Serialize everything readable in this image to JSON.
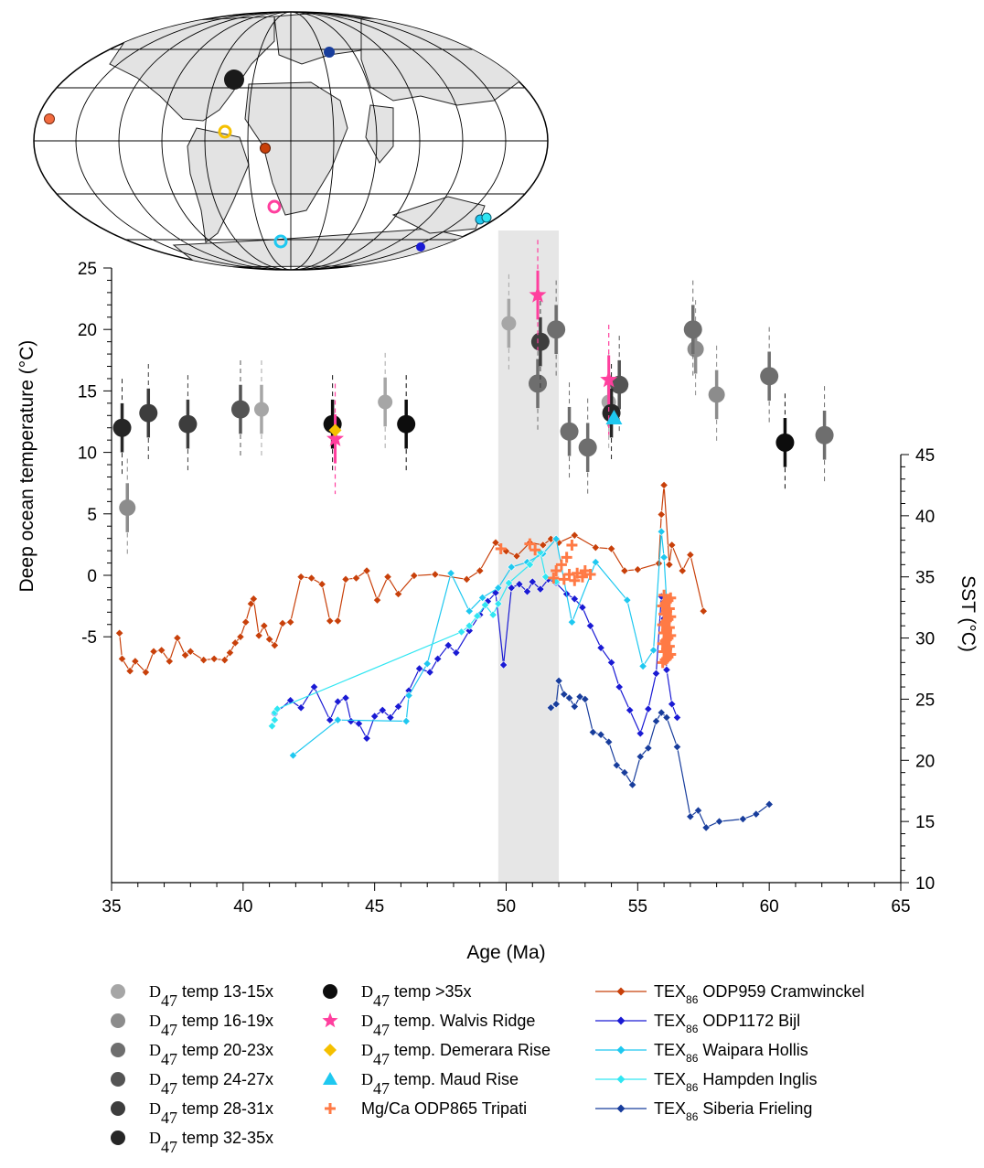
{
  "chart_data": {
    "type": "scatter",
    "xlabel": "Age (Ma)",
    "ylabel_left": "Deep ocean temperature (°C)",
    "ylabel_right": "SST (°C)",
    "xlim": [
      35,
      65
    ],
    "ylim_left": [
      -25,
      25
    ],
    "ylim_right": [
      10,
      45
    ],
    "x_ticks": [
      35,
      40,
      45,
      50,
      55,
      60,
      65
    ],
    "y_left_ticks": [
      -5,
      0,
      5,
      10,
      15,
      20,
      25
    ],
    "y_right_ticks": [
      10,
      15,
      20,
      25,
      30,
      35,
      40,
      45
    ],
    "shaded_interval": [
      49.7,
      52
    ],
    "clumped_series": [
      {
        "name": "D47 temp 13-15x",
        "color": "#a6a6a6",
        "size": 8,
        "points": [
          [
            40.7,
            13.5
          ],
          [
            45.4,
            14.1
          ],
          [
            50.1,
            20.5
          ],
          [
            53.9,
            14.1
          ]
        ]
      },
      {
        "name": "D47 temp 16-19x",
        "color": "#8c8c8c",
        "size": 9,
        "points": [
          [
            35.6,
            5.5
          ],
          [
            57.2,
            18.4
          ],
          [
            58.0,
            14.7
          ]
        ]
      },
      {
        "name": "D47 temp 20-23x",
        "color": "#6e6e6e",
        "size": 10,
        "points": [
          [
            51.2,
            15.6
          ],
          [
            51.9,
            20.0
          ],
          [
            52.4,
            11.7
          ],
          [
            53.1,
            10.4
          ],
          [
            57.1,
            20.0
          ],
          [
            60.0,
            16.2
          ],
          [
            62.1,
            11.4
          ]
        ]
      },
      {
        "name": "D47 temp 24-27x",
        "color": "#545454",
        "size": 10,
        "points": [
          [
            39.9,
            13.5
          ],
          [
            54.3,
            15.5
          ]
        ]
      },
      {
        "name": "D47 temp 28-31x",
        "color": "#3d3d3d",
        "size": 10,
        "points": [
          [
            36.4,
            13.2
          ],
          [
            37.9,
            12.3
          ],
          [
            51.3,
            19.0
          ]
        ]
      },
      {
        "name": "D47 temp 32-35x",
        "color": "#262626",
        "size": 10,
        "points": [
          [
            35.4,
            12.0
          ],
          [
            54.0,
            13.2
          ]
        ]
      },
      {
        "name": "D47 temp >35x",
        "color": "#0d0d0d",
        "size": 10,
        "points": [
          [
            43.4,
            12.3
          ],
          [
            46.2,
            12.3
          ],
          [
            60.6,
            10.8
          ]
        ]
      }
    ],
    "walvis_ridge": {
      "name": "D47 temp. Walvis Ridge",
      "color": "#ff3f9e",
      "points": [
        [
          43.5,
          11.1
        ],
        [
          51.2,
          22.8
        ],
        [
          53.9,
          15.9
        ]
      ]
    },
    "demerara_rise": {
      "name": "D47 temp. Demerara Rise",
      "color": "#f5c000",
      "points": [
        [
          43.5,
          11.8
        ]
      ]
    },
    "maud_rise": {
      "name": "D47 temp. Maud Rise",
      "color": "#1ec8f0",
      "points": [
        [
          54.1,
          12.8
        ]
      ]
    },
    "mgca_tripati": {
      "name": "Mg/Ca ODP865 Tripati",
      "color": "#ff7a45",
      "points": [
        [
          49.8,
          37.3
        ],
        [
          50.9,
          37.7
        ],
        [
          51.1,
          37.2
        ],
        [
          51.9,
          35.5
        ],
        [
          52.1,
          36.0
        ],
        [
          52.3,
          36.6
        ],
        [
          52.5,
          37.6
        ],
        [
          52.2,
          34.8
        ],
        [
          52.4,
          35.2
        ],
        [
          52.7,
          35.3
        ],
        [
          53.0,
          35.5
        ],
        [
          53.2,
          35.2
        ],
        [
          51.8,
          34.9
        ],
        [
          52.9,
          35.0
        ],
        [
          52.6,
          34.7
        ]
      ]
    },
    "mgca_cluster": {
      "color": "#ff7a45",
      "x_center": 56.1,
      "y_min": 28.0,
      "y_max": 33.5
    },
    "tex_series": [
      {
        "name": "TEX86 ODP959 Cramwinckel",
        "color": "#c8400a",
        "points": [
          [
            35.3,
            30.4
          ],
          [
            35.4,
            28.3
          ],
          [
            35.7,
            27.3
          ],
          [
            35.9,
            28.1
          ],
          [
            36.3,
            27.2
          ],
          [
            36.6,
            28.9
          ],
          [
            36.9,
            29.0
          ],
          [
            37.2,
            28.1
          ],
          [
            37.5,
            30.0
          ],
          [
            37.8,
            28.6
          ],
          [
            38.0,
            28.9
          ],
          [
            38.5,
            28.2
          ],
          [
            38.9,
            28.3
          ],
          [
            39.3,
            28.2
          ],
          [
            39.5,
            28.8
          ],
          [
            39.7,
            29.6
          ],
          [
            39.9,
            30.1
          ],
          [
            40.1,
            31.3
          ],
          [
            40.3,
            32.8
          ],
          [
            40.4,
            33.2
          ],
          [
            40.6,
            30.2
          ],
          [
            40.8,
            31.0
          ],
          [
            41.0,
            29.9
          ],
          [
            41.2,
            29.4
          ],
          [
            41.5,
            31.2
          ],
          [
            41.8,
            31.3
          ],
          [
            42.2,
            35.0
          ],
          [
            42.6,
            34.9
          ],
          [
            43.0,
            34.4
          ],
          [
            43.3,
            31.4
          ],
          [
            43.6,
            31.4
          ],
          [
            43.9,
            34.8
          ],
          [
            44.3,
            34.9
          ],
          [
            44.7,
            35.5
          ],
          [
            45.1,
            33.1
          ],
          [
            45.5,
            35.0
          ],
          [
            45.9,
            33.6
          ],
          [
            46.5,
            35.1
          ],
          [
            47.3,
            35.2
          ],
          [
            48.5,
            34.8
          ],
          [
            49.0,
            35.5
          ],
          [
            49.6,
            37.8
          ],
          [
            50.0,
            37.1
          ],
          [
            50.4,
            36.7
          ],
          [
            50.9,
            37.8
          ],
          [
            51.4,
            37.6
          ],
          [
            51.7,
            38.1
          ],
          [
            52.0,
            37.8
          ],
          [
            52.6,
            38.4
          ],
          [
            53.4,
            37.4
          ],
          [
            54.0,
            37.3
          ],
          [
            54.5,
            35.5
          ],
          [
            55.0,
            35.6
          ],
          [
            55.8,
            36.1
          ],
          [
            55.9,
            40.1
          ],
          [
            56.0,
            42.5
          ],
          [
            56.2,
            36.0
          ],
          [
            56.3,
            37.6
          ],
          [
            56.7,
            35.5
          ],
          [
            57.0,
            36.8
          ],
          [
            57.5,
            32.2
          ]
        ]
      },
      {
        "name": "TEX86 ODP1172 Bijl",
        "color": "#1a1ad4",
        "points": [
          [
            41.2,
            23.8
          ],
          [
            41.8,
            24.9
          ],
          [
            42.2,
            24.3
          ],
          [
            42.7,
            26.0
          ],
          [
            43.3,
            23.3
          ],
          [
            43.6,
            24.8
          ],
          [
            43.9,
            25.1
          ],
          [
            44.1,
            23.2
          ],
          [
            44.4,
            23.0
          ],
          [
            44.7,
            21.8
          ],
          [
            45.0,
            23.6
          ],
          [
            45.3,
            24.1
          ],
          [
            45.6,
            23.5
          ],
          [
            45.9,
            24.4
          ],
          [
            46.3,
            25.7
          ],
          [
            46.7,
            27.5
          ],
          [
            47.1,
            27.2
          ],
          [
            47.4,
            28.3
          ],
          [
            47.8,
            29.4
          ],
          [
            48.1,
            28.8
          ],
          [
            48.6,
            30.6
          ],
          [
            49.0,
            31.9
          ],
          [
            49.3,
            33.0
          ],
          [
            49.6,
            33.7
          ],
          [
            49.9,
            27.8
          ],
          [
            50.2,
            34.1
          ],
          [
            50.5,
            34.4
          ],
          [
            50.8,
            33.8
          ],
          [
            51.0,
            34.6
          ],
          [
            51.3,
            34.0
          ],
          [
            51.6,
            34.8
          ],
          [
            51.9,
            34.5
          ],
          [
            52.3,
            33.6
          ],
          [
            52.6,
            33.2
          ],
          [
            52.9,
            32.5
          ],
          [
            53.2,
            31.0
          ],
          [
            53.6,
            29.2
          ],
          [
            54.0,
            28.0
          ],
          [
            54.3,
            26.0
          ],
          [
            54.7,
            24.1
          ],
          [
            55.1,
            22.2
          ],
          [
            55.4,
            24.2
          ],
          [
            55.7,
            27.1
          ],
          [
            55.9,
            33.4
          ],
          [
            56.0,
            31.6
          ],
          [
            56.1,
            27.4
          ],
          [
            56.3,
            24.6
          ],
          [
            56.5,
            23.5
          ]
        ]
      },
      {
        "name": "TEX86 Waipara Hollis",
        "color": "#1ec8f0",
        "points": [
          [
            41.9,
            20.4
          ],
          [
            43.6,
            23.3
          ],
          [
            46.2,
            23.2
          ],
          [
            46.3,
            25.3
          ],
          [
            47.0,
            27.9
          ],
          [
            47.9,
            35.3
          ],
          [
            48.6,
            32.2
          ],
          [
            49.1,
            33.3
          ],
          [
            49.7,
            34.1
          ],
          [
            50.2,
            35.8
          ],
          [
            50.8,
            36.2
          ],
          [
            51.4,
            36.9
          ],
          [
            51.9,
            38.1
          ],
          [
            52.5,
            31.3
          ],
          [
            53.4,
            36.2
          ],
          [
            54.6,
            33.1
          ],
          [
            55.2,
            27.7
          ],
          [
            55.6,
            29.0
          ],
          [
            55.9,
            38.7
          ],
          [
            56.0,
            36.6
          ],
          [
            56.2,
            29.2
          ]
        ]
      },
      {
        "name": "TEX86 Hampden Inglis",
        "color": "#30e6f2",
        "points": [
          [
            41.1,
            22.8
          ],
          [
            41.2,
            23.3
          ],
          [
            41.2,
            23.9
          ],
          [
            41.3,
            24.2
          ],
          [
            48.3,
            30.5
          ],
          [
            48.6,
            31.0
          ],
          [
            48.9,
            31.8
          ],
          [
            49.2,
            32.7
          ],
          [
            49.5,
            31.9
          ],
          [
            49.7,
            32.8
          ],
          [
            50.1,
            34.5
          ],
          [
            50.9,
            36.0
          ],
          [
            51.3,
            37.0
          ],
          [
            51.5,
            35.0
          ],
          [
            51.9,
            34.6
          ]
        ]
      },
      {
        "name": "TEX86 Siberia Frieling",
        "color": "#183d9c",
        "points": [
          [
            51.7,
            24.3
          ],
          [
            51.9,
            24.6
          ],
          [
            52.0,
            26.5
          ],
          [
            52.2,
            25.4
          ],
          [
            52.4,
            25.1
          ],
          [
            52.6,
            24.4
          ],
          [
            52.8,
            25.2
          ],
          [
            53.0,
            25.0
          ],
          [
            53.3,
            22.3
          ],
          [
            53.6,
            22.1
          ],
          [
            53.9,
            21.5
          ],
          [
            54.2,
            19.6
          ],
          [
            54.5,
            19.0
          ],
          [
            54.8,
            18.0
          ],
          [
            55.1,
            20.3
          ],
          [
            55.4,
            21.0
          ],
          [
            55.7,
            23.2
          ],
          [
            55.9,
            23.9
          ],
          [
            56.1,
            23.5
          ],
          [
            56.5,
            21.1
          ],
          [
            57.0,
            15.4
          ],
          [
            57.3,
            15.9
          ],
          [
            57.6,
            14.5
          ],
          [
            58.1,
            15.0
          ],
          [
            59.0,
            15.2
          ],
          [
            59.5,
            15.6
          ],
          [
            60.0,
            16.4
          ]
        ]
      }
    ],
    "map_markers": [
      {
        "label": "ODP865",
        "color": "#f26b3f",
        "hollow": false
      },
      {
        "label": "Walvis Ridge",
        "color": "#ff3f9e",
        "hollow": true
      },
      {
        "label": "Demerara Rise",
        "color": "#f5c000",
        "hollow": true
      },
      {
        "label": "Maud Rise",
        "color": "#1ec8f0",
        "hollow": true
      },
      {
        "label": "ODP959",
        "color": "#c8400a",
        "hollow": false
      },
      {
        "label": "Siberia",
        "color": "#183d9c",
        "hollow": false
      },
      {
        "label": "ODP1172",
        "color": "#1a1ad4",
        "hollow": false
      },
      {
        "label": "Waipara / Hampden",
        "color": "#1ec8f0",
        "hollow": false
      }
    ]
  },
  "legend": {
    "col1": [
      {
        "sym": "D",
        "sub": "47",
        "rest": " temp 13-15x",
        "color": "#a6a6a6"
      },
      {
        "sym": "D",
        "sub": "47",
        "rest": " temp 16-19x",
        "color": "#8c8c8c"
      },
      {
        "sym": "D",
        "sub": "47",
        "rest": " temp 20-23x",
        "color": "#6e6e6e"
      },
      {
        "sym": "D",
        "sub": "47",
        "rest": " temp 24-27x",
        "color": "#545454"
      },
      {
        "sym": "D",
        "sub": "47",
        "rest": " temp 28-31x",
        "color": "#3d3d3d"
      },
      {
        "sym": "D",
        "sub": "47",
        "rest": " temp 32-35x",
        "color": "#262626"
      }
    ],
    "col2": [
      {
        "sym": "D",
        "sub": "47",
        "rest": " temp >35x",
        "marker": "circle",
        "color": "#0d0d0d"
      },
      {
        "sym": "D",
        "sub": "47",
        "rest": " temp. Walvis Ridge",
        "marker": "star",
        "color": "#ff3f9e"
      },
      {
        "sym": "D",
        "sub": "47",
        "rest": " temp. Demerara Rise",
        "marker": "diamond",
        "color": "#f5c000"
      },
      {
        "sym": "D",
        "sub": "47",
        "rest": " temp. Maud Rise",
        "marker": "triangle",
        "color": "#1ec8f0"
      },
      {
        "sym": "",
        "sub": "",
        "rest": "Mg/Ca ODP865 Tripati",
        "marker": "plus",
        "color": "#ff7a45"
      }
    ],
    "col3": [
      {
        "pre": "TEX",
        "sub": "86",
        "rest": " ODP959 Cramwinckel",
        "color": "#c8400a"
      },
      {
        "pre": "TEX",
        "sub": "86",
        "rest": " ODP1172 Bijl",
        "color": "#1a1ad4"
      },
      {
        "pre": "TEX",
        "sub": "86",
        "rest": " Waipara Hollis",
        "color": "#1ec8f0"
      },
      {
        "pre": "TEX",
        "sub": "86",
        "rest": " Hampden Inglis",
        "color": "#30e6f2"
      },
      {
        "pre": "TEX",
        "sub": "86",
        "rest": " Siberia Frieling",
        "color": "#183d9c"
      }
    ]
  }
}
